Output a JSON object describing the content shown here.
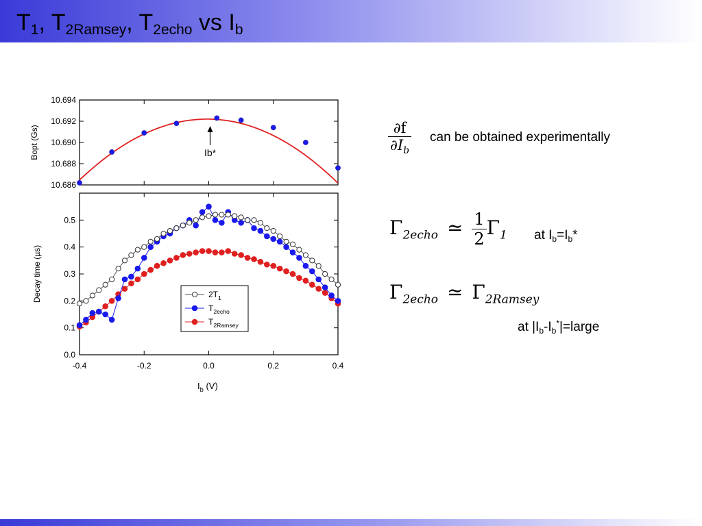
{
  "slide": {
    "title": {
      "parts": [
        {
          "main": "T",
          "sub": "1"
        },
        {
          "main": ", T",
          "sub": "2Ramsey"
        },
        {
          "main": ", T",
          "sub": "2echo"
        },
        {
          "main": " vs I",
          "sub": "b"
        }
      ]
    },
    "note_df": "can be obtained experimentally",
    "note_at_ib": {
      "pre": "at I",
      "s1": "b",
      "mid": "=I",
      "s2": "b",
      "post": "*"
    },
    "note_large": {
      "pre": "at |I",
      "s1": "b",
      "mid": "-I",
      "s2": "b",
      "sup": "*",
      "post": "|=large"
    },
    "math_df": {
      "num": "∂f",
      "den": "∂I",
      "den_sub": "b"
    },
    "math_eq1": {
      "lhs": "Γ",
      "lhs_sub": "2echo",
      "rel": "≃",
      "num": "1",
      "den": "2",
      "rhs": "Γ",
      "rhs_sub": "1"
    },
    "math_eq2": {
      "lhs": "Γ",
      "lhs_sub": "2echo",
      "rel": "≃",
      "rhs": "Γ",
      "rhs_sub": "2Ramsey"
    }
  },
  "colors": {
    "red": "#e02020",
    "blue": "#1a1aee",
    "black": "#000000",
    "gray": "#555555"
  },
  "chart_data": [
    {
      "type": "scatter",
      "ylabel": "Bopt (Gs)",
      "xlabel": "",
      "xlim": [
        -0.4,
        0.4
      ],
      "ylim": [
        10.686,
        10.694
      ],
      "yticks": [
        10.686,
        10.688,
        10.69,
        10.692,
        10.694
      ],
      "ytick_labels": [
        "10.686",
        "10.688",
        "10.690",
        "10.692",
        "10.694"
      ],
      "xticks": [
        -0.4,
        -0.2,
        0.0,
        0.2,
        0.4
      ],
      "annotation": "Ib*",
      "annotation_x": 0.0,
      "series": [
        {
          "x": [
            -0.4,
            -0.3,
            -0.2,
            -0.1,
            0.025,
            0.1,
            0.2,
            0.3,
            0.4
          ],
          "y": [
            10.6862,
            10.6891,
            10.6909,
            10.6918,
            10.6923,
            10.6921,
            10.6914,
            10.69,
            10.6876
          ]
        }
      ],
      "fit": {
        "vertex_x": -0.005,
        "vertex_y": 10.6922,
        "curvature": 0.0368
      }
    },
    {
      "type": "line",
      "ylabel": "Decay time (µs)",
      "xlabel": "I",
      "xlabel_sub": "b",
      "xlabel_post": " (V)",
      "xlim": [
        -0.4,
        0.4
      ],
      "ylim": [
        0.0,
        0.6
      ],
      "yticks": [
        0.0,
        0.1,
        0.2,
        0.3,
        0.4,
        0.5
      ],
      "ytick_labels": [
        "0.0",
        "0.1",
        "0.2",
        "0.3",
        "0.4",
        "0.5"
      ],
      "xticks": [
        -0.4,
        -0.2,
        0.0,
        0.2,
        0.4
      ],
      "xtick_labels": [
        "-0.4",
        "-0.2",
        "0.0",
        "0.2",
        "0.4"
      ],
      "legend_position": "lower-center",
      "series": [
        {
          "name": "2T",
          "name_sub": "1",
          "marker": "open-circle",
          "x": [
            -0.4,
            -0.38,
            -0.36,
            -0.34,
            -0.32,
            -0.3,
            -0.28,
            -0.26,
            -0.24,
            -0.22,
            -0.2,
            -0.18,
            -0.16,
            -0.14,
            -0.12,
            -0.1,
            -0.08,
            -0.06,
            -0.04,
            -0.02,
            0.0,
            0.02,
            0.04,
            0.06,
            0.08,
            0.1,
            0.12,
            0.14,
            0.16,
            0.18,
            0.2,
            0.22,
            0.24,
            0.26,
            0.28,
            0.3,
            0.32,
            0.34,
            0.36,
            0.38,
            0.4
          ],
          "y": [
            0.19,
            0.2,
            0.22,
            0.24,
            0.26,
            0.28,
            0.32,
            0.35,
            0.37,
            0.39,
            0.4,
            0.42,
            0.43,
            0.45,
            0.46,
            0.47,
            0.48,
            0.49,
            0.5,
            0.51,
            0.515,
            0.52,
            0.52,
            0.52,
            0.515,
            0.51,
            0.5,
            0.5,
            0.49,
            0.47,
            0.46,
            0.44,
            0.42,
            0.41,
            0.39,
            0.37,
            0.35,
            0.33,
            0.3,
            0.28,
            0.26
          ]
        },
        {
          "name": "T",
          "name_sub": "2echo",
          "marker": "blue-dot",
          "x": [
            -0.4,
            -0.38,
            -0.36,
            -0.34,
            -0.32,
            -0.3,
            -0.28,
            -0.26,
            -0.24,
            -0.22,
            -0.2,
            -0.18,
            -0.16,
            -0.14,
            -0.12,
            -0.1,
            -0.08,
            -0.06,
            -0.04,
            -0.02,
            0.0,
            0.02,
            0.04,
            0.06,
            0.08,
            0.1,
            0.12,
            0.14,
            0.16,
            0.18,
            0.2,
            0.22,
            0.24,
            0.26,
            0.28,
            0.3,
            0.32,
            0.34,
            0.36,
            0.38,
            0.4
          ],
          "y": [
            0.11,
            0.13,
            0.155,
            0.16,
            0.15,
            0.13,
            0.21,
            0.28,
            0.29,
            0.32,
            0.36,
            0.4,
            0.42,
            0.44,
            0.45,
            0.47,
            0.48,
            0.5,
            0.48,
            0.53,
            0.55,
            0.5,
            0.49,
            0.53,
            0.5,
            0.49,
            0.5,
            0.47,
            0.46,
            0.44,
            0.43,
            0.42,
            0.4,
            0.38,
            0.36,
            0.33,
            0.31,
            0.28,
            0.25,
            0.22,
            0.2
          ]
        },
        {
          "name": "T",
          "name_sub": "2Ramsey",
          "marker": "red-dot",
          "x": [
            -0.4,
            -0.38,
            -0.36,
            -0.34,
            -0.32,
            -0.3,
            -0.28,
            -0.26,
            -0.24,
            -0.22,
            -0.2,
            -0.18,
            -0.16,
            -0.14,
            -0.12,
            -0.1,
            -0.08,
            -0.06,
            -0.04,
            -0.02,
            0.0,
            0.02,
            0.04,
            0.06,
            0.08,
            0.1,
            0.12,
            0.14,
            0.16,
            0.18,
            0.2,
            0.22,
            0.24,
            0.26,
            0.28,
            0.3,
            0.32,
            0.34,
            0.36,
            0.38,
            0.4
          ],
          "y": [
            0.105,
            0.12,
            0.14,
            0.16,
            0.18,
            0.2,
            0.225,
            0.245,
            0.265,
            0.28,
            0.3,
            0.315,
            0.33,
            0.34,
            0.35,
            0.36,
            0.37,
            0.375,
            0.38,
            0.385,
            0.385,
            0.38,
            0.38,
            0.385,
            0.375,
            0.37,
            0.36,
            0.355,
            0.345,
            0.335,
            0.33,
            0.32,
            0.31,
            0.3,
            0.285,
            0.275,
            0.26,
            0.245,
            0.23,
            0.21,
            0.19
          ]
        }
      ]
    }
  ]
}
